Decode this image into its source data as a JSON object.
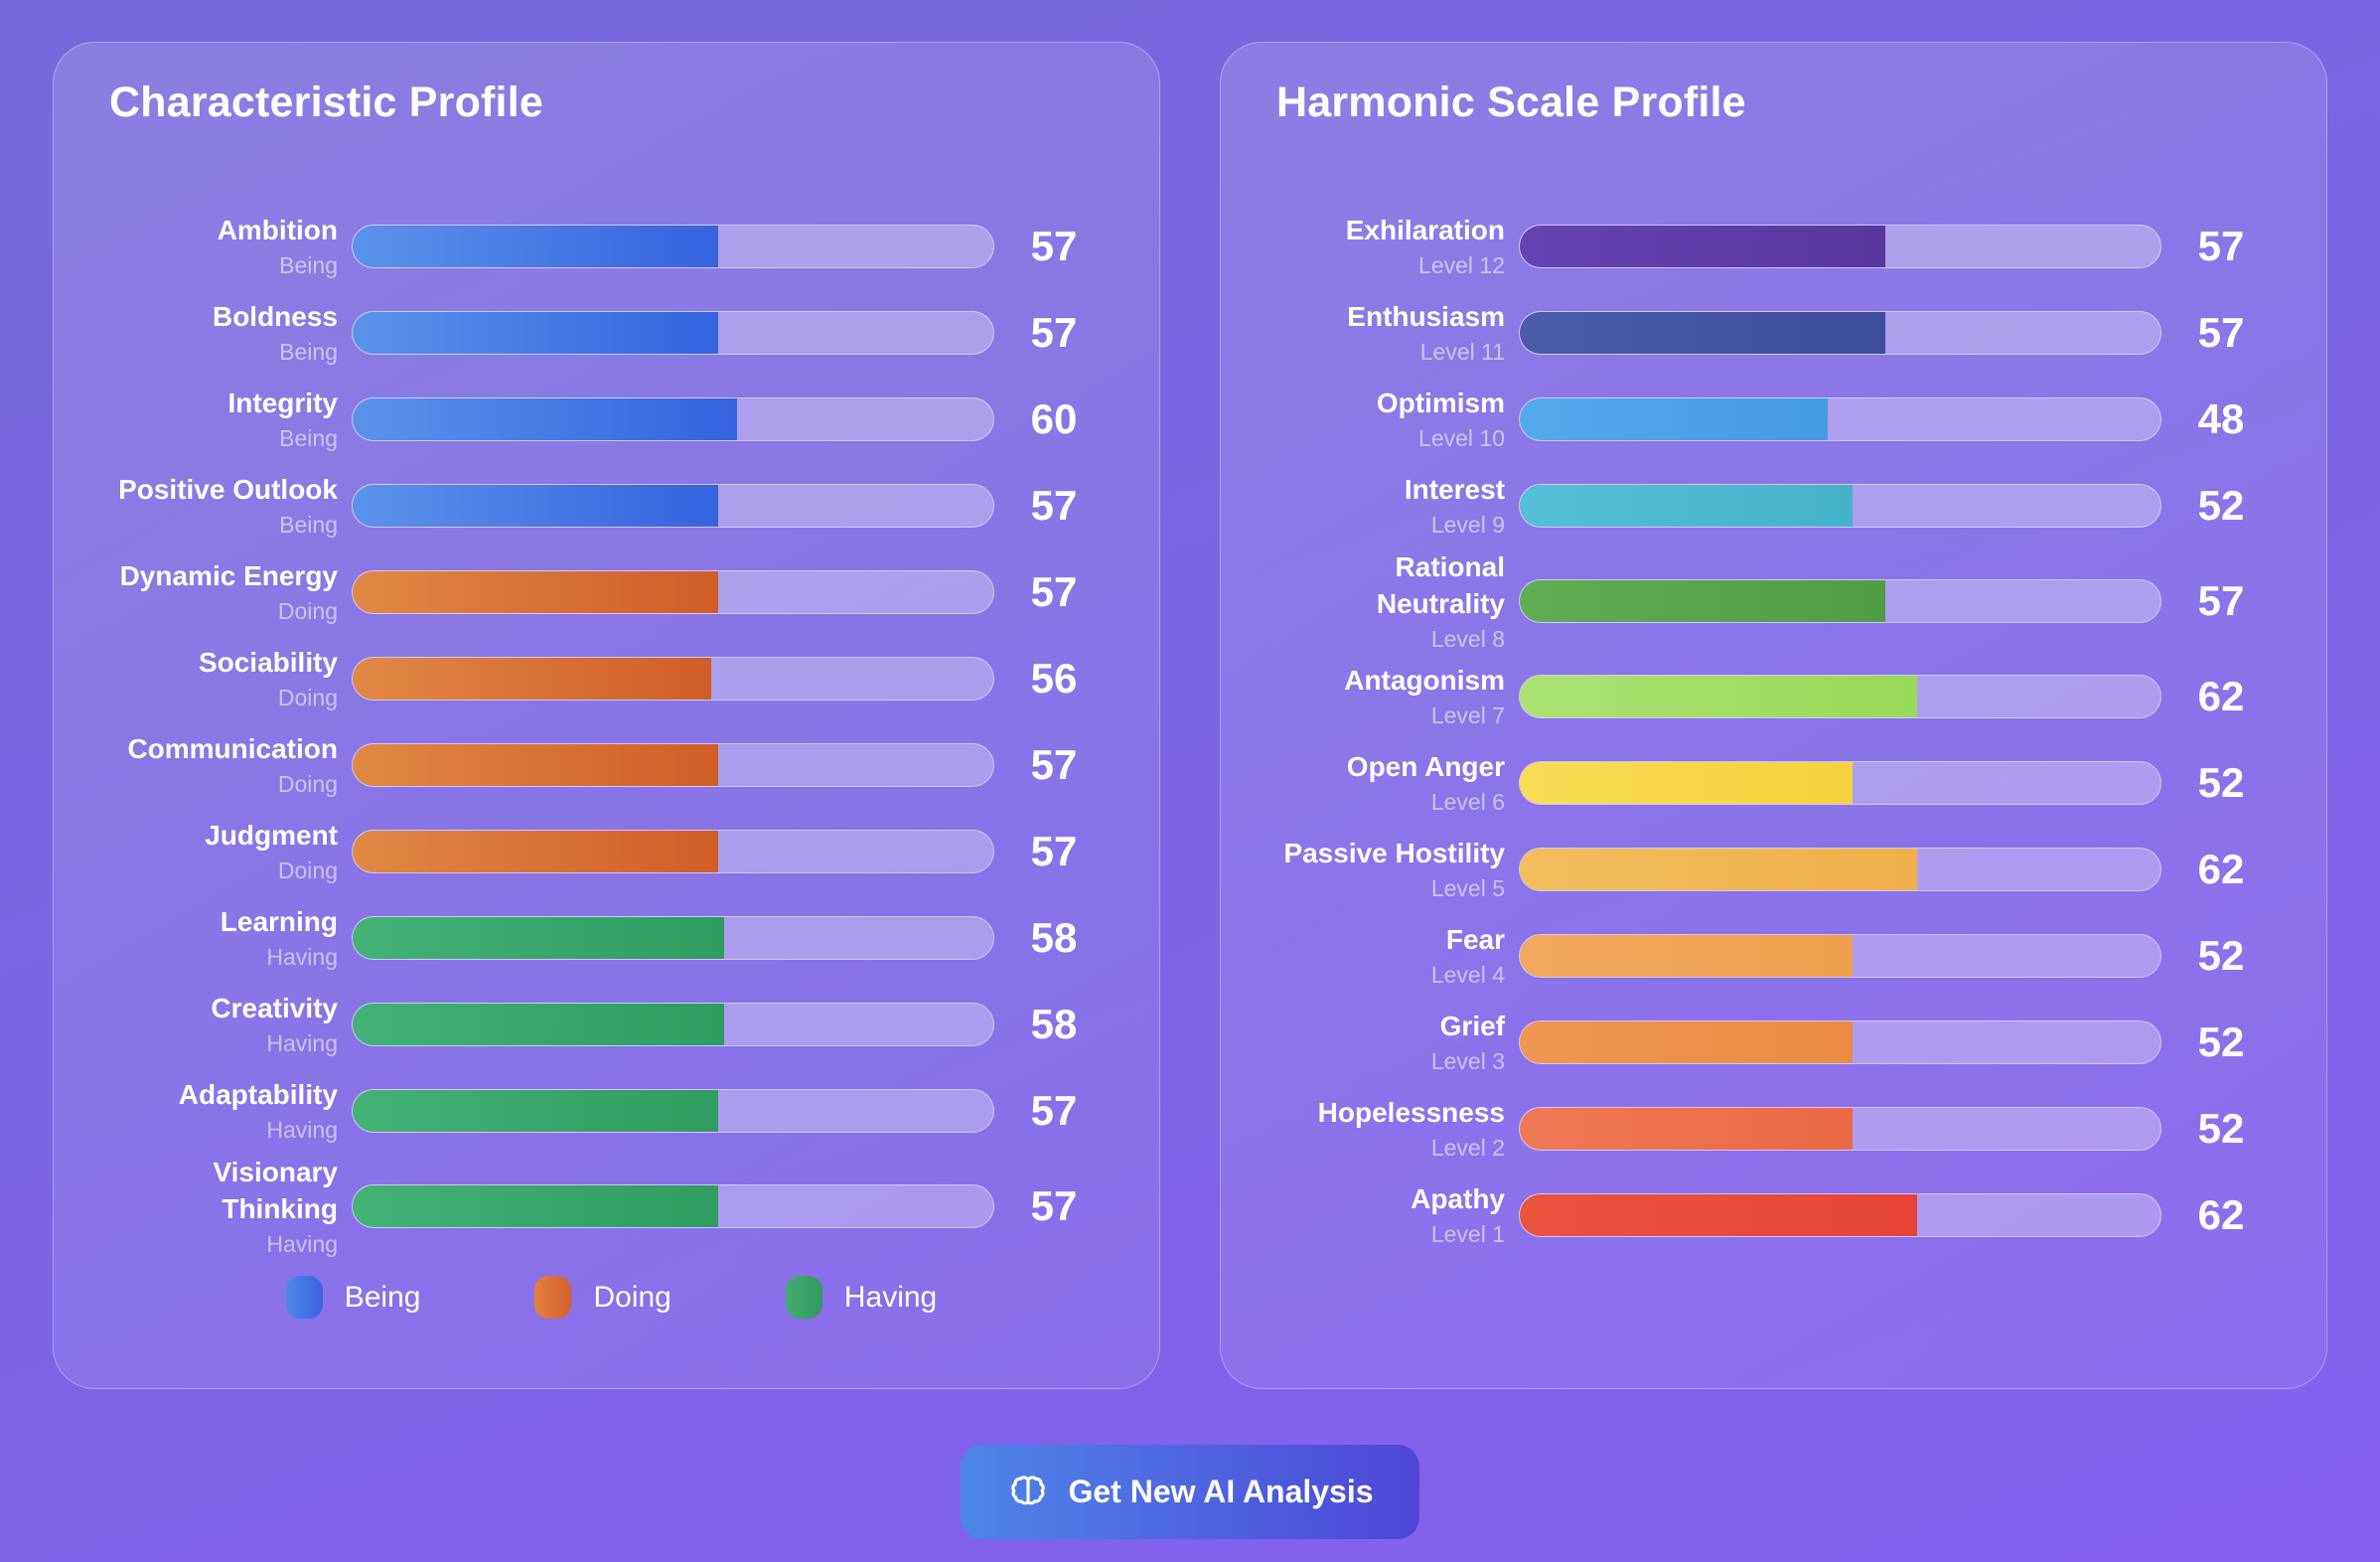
{
  "left_panel": {
    "title": "Characteristic Profile",
    "rows": [
      {
        "label": "Ambition",
        "sublabel": "Being",
        "value": 57,
        "colors": [
          "#5b93ea",
          "#3463de"
        ]
      },
      {
        "label": "Boldness",
        "sublabel": "Being",
        "value": 57,
        "colors": [
          "#5b93ea",
          "#3463de"
        ]
      },
      {
        "label": "Integrity",
        "sublabel": "Being",
        "value": 60,
        "colors": [
          "#5b93ea",
          "#3463de"
        ]
      },
      {
        "label": "Positive Outlook",
        "sublabel": "Being",
        "value": 57,
        "colors": [
          "#5b93ea",
          "#3463de"
        ]
      },
      {
        "label": "Dynamic Energy",
        "sublabel": "Doing",
        "value": 57,
        "colors": [
          "#e18845",
          "#d05e28"
        ]
      },
      {
        "label": "Sociability",
        "sublabel": "Doing",
        "value": 56,
        "colors": [
          "#e18845",
          "#d05e28"
        ]
      },
      {
        "label": "Communication",
        "sublabel": "Doing",
        "value": 57,
        "colors": [
          "#e18845",
          "#d05e28"
        ]
      },
      {
        "label": "Judgment",
        "sublabel": "Doing",
        "value": 57,
        "colors": [
          "#e18845",
          "#d05e28"
        ]
      },
      {
        "label": "Learning",
        "sublabel": "Having",
        "value": 58,
        "colors": [
          "#44b377",
          "#2f9c60"
        ]
      },
      {
        "label": "Creativity",
        "sublabel": "Having",
        "value": 58,
        "colors": [
          "#44b377",
          "#2f9c60"
        ]
      },
      {
        "label": "Adaptability",
        "sublabel": "Having",
        "value": 57,
        "colors": [
          "#44b377",
          "#2f9c60"
        ]
      },
      {
        "label": "Visionary Thinking",
        "sublabel": "Having",
        "value": 57,
        "colors": [
          "#44b377",
          "#2f9c60"
        ]
      }
    ],
    "legend": [
      {
        "label": "Being",
        "colors": [
          "#4e89e9",
          "#3765de"
        ]
      },
      {
        "label": "Doing",
        "colors": [
          "#e2813f",
          "#d2602a"
        ]
      },
      {
        "label": "Having",
        "colors": [
          "#42ad72",
          "#339a61"
        ]
      }
    ]
  },
  "right_panel": {
    "title": "Harmonic Scale Profile",
    "rows": [
      {
        "label": "Exhilaration",
        "sublabel": "Level 12",
        "value": 57,
        "colors": [
          "#6443b2",
          "#58379f"
        ]
      },
      {
        "label": "Enthusiasm",
        "sublabel": "Level 11",
        "value": 57,
        "colors": [
          "#4a5cab",
          "#3e4d9c"
        ]
      },
      {
        "label": "Optimism",
        "sublabel": "Level 10",
        "value": 48,
        "colors": [
          "#55a9ec",
          "#459ae4"
        ]
      },
      {
        "label": "Interest",
        "sublabel": "Level 9",
        "value": 52,
        "colors": [
          "#54c0d6",
          "#45b2cb"
        ]
      },
      {
        "label": "Rational Neutrality",
        "sublabel": "Level 8",
        "value": 57,
        "colors": [
          "#5fae51",
          "#4f9e43"
        ]
      },
      {
        "label": "Antagonism",
        "sublabel": "Level 7",
        "value": 62,
        "colors": [
          "#abe373",
          "#97d958"
        ]
      },
      {
        "label": "Open Anger",
        "sublabel": "Level 6",
        "value": 52,
        "colors": [
          "#f8dc55",
          "#f5d23c"
        ]
      },
      {
        "label": "Passive Hostility",
        "sublabel": "Level 5",
        "value": 62,
        "colors": [
          "#f4bd5e",
          "#efb04a"
        ]
      },
      {
        "label": "Fear",
        "sublabel": "Level 4",
        "value": 52,
        "colors": [
          "#f2a95e",
          "#efa04d"
        ]
      },
      {
        "label": "Grief",
        "sublabel": "Level 3",
        "value": 52,
        "colors": [
          "#f09752",
          "#ec8c42"
        ]
      },
      {
        "label": "Hopelessness",
        "sublabel": "Level 2",
        "value": 52,
        "colors": [
          "#ee7a55",
          "#ea6a43"
        ]
      },
      {
        "label": "Apathy",
        "sublabel": "Level 1",
        "value": 62,
        "colors": [
          "#e9543f",
          "#e64435"
        ]
      }
    ]
  },
  "footer": {
    "button_label": "Get New AI Analysis",
    "button_icon": "brain-icon",
    "button": {
      "colors": [
        "#4d86e8",
        "#4f46d6"
      ]
    }
  },
  "chart_data": [
    {
      "type": "bar",
      "orientation": "horizontal",
      "title": "Characteristic Profile",
      "categories": [
        "Ambition",
        "Boldness",
        "Integrity",
        "Positive Outlook",
        "Dynamic Energy",
        "Sociability",
        "Communication",
        "Judgment",
        "Learning",
        "Creativity",
        "Adaptability",
        "Visionary Thinking"
      ],
      "groups": [
        "Being",
        "Being",
        "Being",
        "Being",
        "Doing",
        "Doing",
        "Doing",
        "Doing",
        "Having",
        "Having",
        "Having",
        "Having"
      ],
      "values": [
        57,
        57,
        60,
        57,
        57,
        56,
        57,
        57,
        58,
        58,
        57,
        57
      ],
      "xlim": [
        0,
        100
      ],
      "legend": [
        "Being",
        "Doing",
        "Having"
      ],
      "legend_position": "bottom",
      "legend_colors": [
        "#3b7ce6",
        "#dd6b2d",
        "#3aa56c"
      ],
      "grid": false
    },
    {
      "type": "bar",
      "orientation": "horizontal",
      "title": "Harmonic Scale Profile",
      "categories": [
        "Exhilaration",
        "Enthusiasm",
        "Optimism",
        "Interest",
        "Rational Neutrality",
        "Antagonism",
        "Open Anger",
        "Passive Hostility",
        "Fear",
        "Grief",
        "Hopelessness",
        "Apathy"
      ],
      "sublabels": [
        "Level 12",
        "Level 11",
        "Level 10",
        "Level 9",
        "Level 8",
        "Level 7",
        "Level 6",
        "Level 5",
        "Level 4",
        "Level 3",
        "Level 2",
        "Level 1"
      ],
      "values": [
        57,
        57,
        48,
        52,
        57,
        62,
        52,
        62,
        52,
        52,
        52,
        62
      ],
      "xlim": [
        0,
        100
      ],
      "bar_colors": [
        "#5c3bab",
        "#44539f",
        "#4ba1ea",
        "#4fbcd3",
        "#57a748",
        "#a1de62",
        "#f6d545",
        "#f1b654",
        "#f0a455",
        "#ee9149",
        "#ec724c",
        "#e74c3c"
      ],
      "grid": false
    }
  ]
}
